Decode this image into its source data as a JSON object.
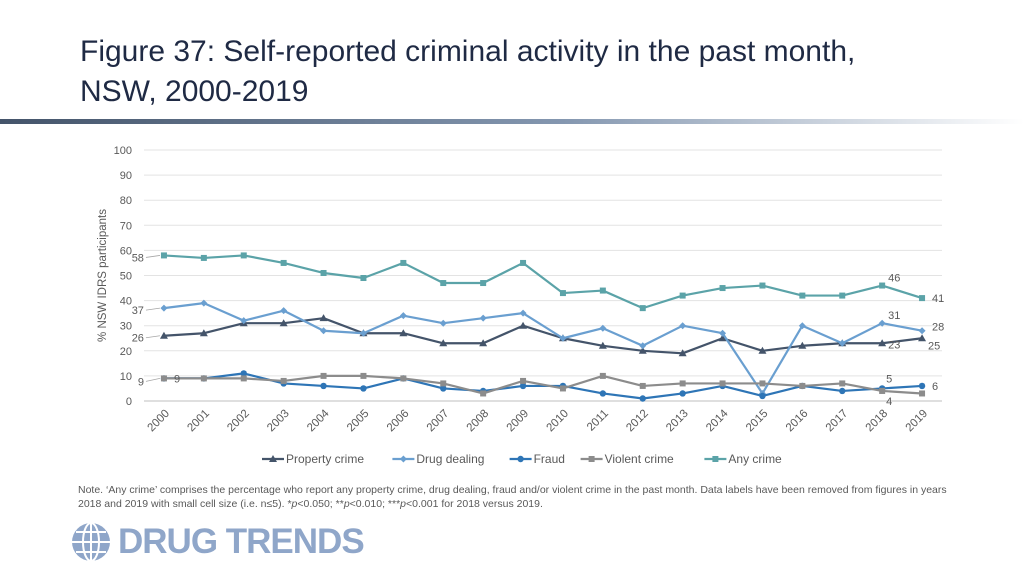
{
  "page": {
    "title_line1": "Figure 37: Self-reported criminal activity in the past month,",
    "title_line2": "NSW, 2000-2019",
    "note_prefix": "Note. ‘Any crime’ comprises the percentage who report any property crime, drug dealing, fraud and/or violent crime in the past month. Data labels have been removed from figures in years 2018 and 2019 with small cell size (i.e. n≤5). *",
    "note_p": "p",
    "note_t1": "<0.050; **",
    "note_t2": "<0.010; ***",
    "note_t3": "<0.001 for 2018 versus 2019.",
    "logo_text": "DRUG TRENDS"
  },
  "chart_data": {
    "type": "line",
    "ylabel": "% NSW IDRS participants",
    "xlabel": "",
    "ylim": [
      0,
      100
    ],
    "yticks": [
      0,
      10,
      20,
      30,
      40,
      50,
      60,
      70,
      80,
      90,
      100
    ],
    "grid": true,
    "legend_position": "bottom",
    "x": [
      "2000",
      "2001",
      "2002",
      "2003",
      "2004",
      "2005",
      "2006",
      "2007",
      "2008",
      "2009",
      "2010",
      "2011",
      "2012",
      "2013",
      "2014",
      "2015",
      "2016",
      "2017",
      "2018",
      "2019"
    ],
    "series": [
      {
        "name": "Property crime",
        "color": "#44546a",
        "marker": "triangle",
        "values": [
          26,
          27,
          31,
          31,
          33,
          27,
          27,
          23,
          23,
          30,
          25,
          22,
          20,
          19,
          25,
          20,
          22,
          23,
          23,
          25
        ]
      },
      {
        "name": "Drug dealing",
        "color": "#6a9fd0",
        "marker": "diamond",
        "values": [
          37,
          39,
          32,
          36,
          28,
          27,
          34,
          31,
          33,
          35,
          25,
          29,
          22,
          30,
          27,
          3,
          30,
          23,
          31,
          28
        ]
      },
      {
        "name": "Fraud",
        "color": "#2e75b6",
        "marker": "circle",
        "values": [
          9,
          9,
          11,
          7,
          6,
          5,
          9,
          5,
          4,
          6,
          6,
          3,
          1,
          3,
          6,
          2,
          6,
          4,
          5,
          6
        ]
      },
      {
        "name": "Violent crime",
        "color": "#8c8c8c",
        "marker": "square",
        "values": [
          9,
          9,
          9,
          8,
          10,
          10,
          9,
          7,
          3,
          8,
          5,
          10,
          6,
          7,
          7,
          7,
          6,
          7,
          4,
          3
        ]
      },
      {
        "name": "Any crime",
        "color": "#5ba3a8",
        "marker": "square",
        "values": [
          58,
          57,
          58,
          55,
          51,
          49,
          55,
          47,
          47,
          55,
          43,
          44,
          37,
          42,
          45,
          46,
          42,
          42,
          46,
          41
        ]
      }
    ],
    "data_labels": [
      {
        "series": "Any crime",
        "x": "2000",
        "text": "58"
      },
      {
        "series": "Drug dealing",
        "x": "2000",
        "text": "37"
      },
      {
        "series": "Property crime",
        "x": "2000",
        "text": "26"
      },
      {
        "series": "Fraud",
        "x": "2000",
        "text": "9"
      },
      {
        "series": "Violent crime",
        "x": "2000",
        "text": "9"
      },
      {
        "series": "Any crime",
        "x": "2018",
        "text": "46"
      },
      {
        "series": "Any crime",
        "x": "2019",
        "text": "41"
      },
      {
        "series": "Drug dealing",
        "x": "2018",
        "text": "31"
      },
      {
        "series": "Drug dealing",
        "x": "2019",
        "text": "28"
      },
      {
        "series": "Property crime",
        "x": "2018",
        "text": "23"
      },
      {
        "series": "Property crime",
        "x": "2019",
        "text": "25"
      },
      {
        "series": "Fraud",
        "x": "2018",
        "text": "5"
      },
      {
        "series": "Fraud",
        "x": "2019",
        "text": "6"
      },
      {
        "series": "Violent crime",
        "x": "2018",
        "text": "4"
      }
    ]
  }
}
